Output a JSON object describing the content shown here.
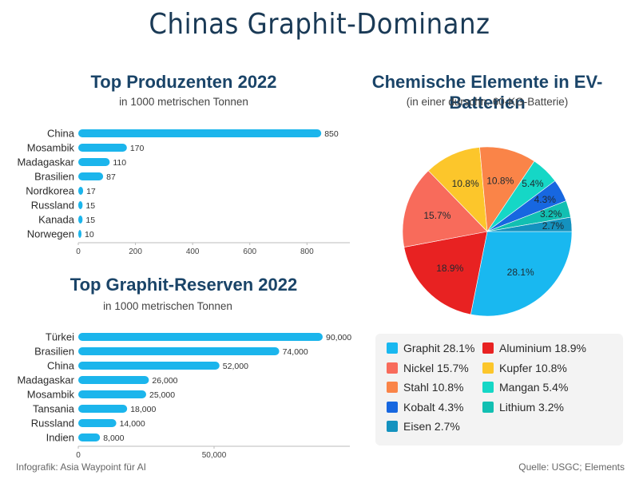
{
  "page": {
    "title": "Chinas Graphit-Dominanz",
    "footer_left": "Infografik: Asia Waypoint für AI",
    "footer_right": "Quelle: USGC; Elements"
  },
  "producers": {
    "title": "Top Produzenten 2022",
    "subtitle": "in 1000 metrischen Tonnen"
  },
  "reserves": {
    "title": "Top Graphit-Reserven 2022",
    "subtitle": "in 1000 metrischen Tonnen"
  },
  "battery": {
    "title": "Chemische Elemente in EV-Batterien",
    "subtitle": "(in einer durschn. 60-KG-Batterie)"
  },
  "chart_data": [
    {
      "type": "bar",
      "orientation": "horizontal",
      "title": "Top Produzenten 2022",
      "subtitle": "in 1000 metrischen Tonnen",
      "categories": [
        "China",
        "Mosambik",
        "Madagaskar",
        "Brasilien",
        "Nordkorea",
        "Russland",
        "Kanada",
        "Norwegen"
      ],
      "values": [
        850,
        170,
        110,
        87,
        17,
        15,
        15,
        10
      ],
      "value_labels": [
        "850",
        "170",
        "110",
        "87",
        "17",
        "15",
        "15",
        "10"
      ],
      "xlim": [
        0,
        950
      ],
      "xticks": [
        0,
        200,
        400,
        600,
        800
      ],
      "xtick_labels": [
        "0",
        "200",
        "400",
        "600",
        "800"
      ],
      "color": "#1bb5ec"
    },
    {
      "type": "bar",
      "orientation": "horizontal",
      "title": "Top Graphit-Reserven 2022",
      "subtitle": "in 1000 metrischen Tonnen",
      "categories": [
        "Türkei",
        "Brasilien",
        "China",
        "Madagaskar",
        "Mosambik",
        "Tansania",
        "Russland",
        "Indien"
      ],
      "values": [
        90000,
        74000,
        52000,
        26000,
        25000,
        18000,
        14000,
        8000
      ],
      "value_labels": [
        "90,000",
        "74,000",
        "52,000",
        "26,000",
        "25,000",
        "18,000",
        "14,000",
        "8,000"
      ],
      "xlim": [
        0,
        100000
      ],
      "xticks": [
        0,
        50000
      ],
      "xtick_labels": [
        "0",
        "50,000"
      ],
      "color": "#1bb5ec"
    },
    {
      "type": "pie",
      "title": "Chemische Elemente in EV-Batterien",
      "subtitle": "(in einer durschn. 60-KG-Batterie)",
      "slices": [
        {
          "label": "Graphit",
          "value": 28.1,
          "display": "28.1%",
          "legend": "Graphit 28.1%",
          "color": "#19b8f0"
        },
        {
          "label": "Aluminium",
          "value": 18.9,
          "display": "18.9%",
          "legend": "Aluminium 18.9%",
          "color": "#e82222"
        },
        {
          "label": "Nickel",
          "value": 15.7,
          "display": "15.7%",
          "legend": "Nickel 15.7%",
          "color": "#f86b5b"
        },
        {
          "label": "Kupfer",
          "value": 10.8,
          "display": "10.8%",
          "legend": "Kupfer 10.8%",
          "color": "#fcc62b"
        },
        {
          "label": "Stahl",
          "value": 10.8,
          "display": "10.8%",
          "legend": "Stahl 10.8%",
          "color": "#fa8448"
        },
        {
          "label": "Mangan",
          "value": 5.4,
          "display": "5.4%",
          "legend": "Mangan 5.4%",
          "color": "#15d7c6"
        },
        {
          "label": "Kobalt",
          "value": 4.3,
          "display": "4.3%",
          "legend": "Kobalt 4.3%",
          "color": "#1767e0"
        },
        {
          "label": "Lithium",
          "value": 3.2,
          "display": "3.2%",
          "legend": "Lithium 3.2%",
          "color": "#12bfb2"
        },
        {
          "label": "Eisen",
          "value": 2.7,
          "display": "2.7%",
          "legend": "Eisen 2.7%",
          "color": "#1492bf"
        }
      ],
      "legend_placement": "bottom"
    }
  ]
}
